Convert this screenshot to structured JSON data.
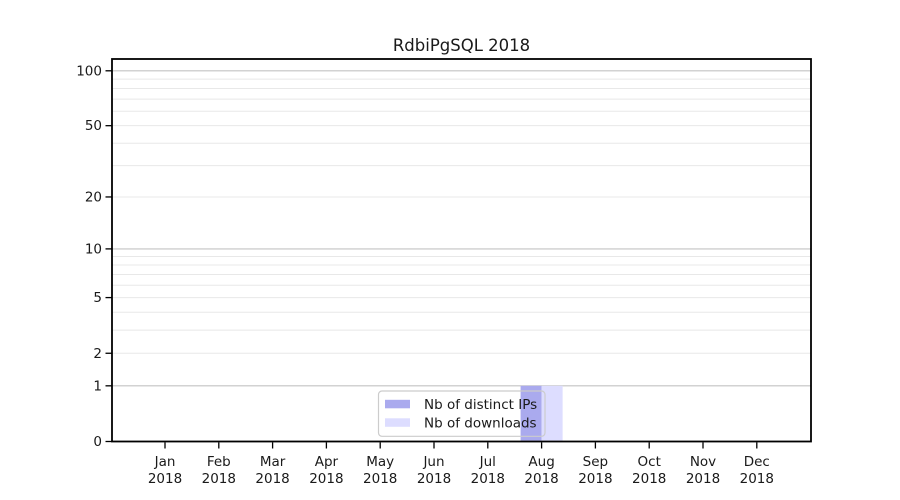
{
  "chart_data": {
    "type": "bar",
    "title": "RdbiPgSQL 2018",
    "x_categories": [
      "Jan",
      "Feb",
      "Mar",
      "Apr",
      "May",
      "Jun",
      "Jul",
      "Aug",
      "Sep",
      "Oct",
      "Nov",
      "Dec"
    ],
    "x_year_label": "2018",
    "series": [
      {
        "name": "Nb of distinct IPs",
        "color": "#aaaaee",
        "values": [
          0,
          0,
          0,
          0,
          0,
          0,
          0,
          1,
          0,
          0,
          0,
          0
        ]
      },
      {
        "name": "Nb of downloads",
        "color": "#ddddff",
        "values": [
          0,
          0,
          0,
          0,
          0,
          0,
          0,
          1,
          0,
          0,
          0,
          0
        ]
      }
    ],
    "y_axis": {
      "scale": "log10(1+x)",
      "tick_values": [
        0,
        1,
        2,
        5,
        10,
        20,
        50,
        100
      ],
      "tick_labels": [
        "0",
        "1",
        "2",
        "5",
        "10",
        "20",
        "50",
        "100"
      ],
      "major_grid_values": [
        1,
        10,
        100
      ],
      "minor_grid_values": [
        2,
        3,
        4,
        5,
        6,
        7,
        8,
        9,
        20,
        30,
        40,
        50,
        60,
        70,
        80,
        90
      ],
      "top_value": 115
    },
    "legend": {
      "position": "lower center",
      "items": [
        {
          "label": "Nb of distinct IPs",
          "color": "#aaaaee"
        },
        {
          "label": "Nb of downloads",
          "color": "#ddddff"
        }
      ]
    },
    "colors": {
      "background": "#ffffff",
      "spine": "#000000",
      "grid_major": "#c3c3c3",
      "grid_minor": "#e8e8e8",
      "text": "#1a1a1a",
      "legend_border": "#cccccc"
    },
    "grid": true,
    "ylim_bottom": 0
  }
}
